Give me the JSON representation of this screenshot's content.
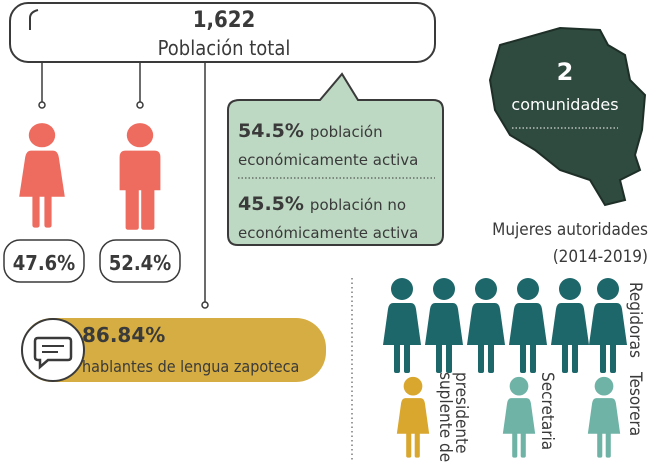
{
  "population": {
    "value": "1,622",
    "label": "Población total"
  },
  "gender": [
    {
      "value": "47.6%"
    },
    {
      "value": "52.4%"
    }
  ],
  "economy": [
    {
      "value": "54.5%",
      "lines": [
        "población",
        "económicamente activa"
      ]
    },
    {
      "value": "45.5%",
      "lines": [
        "población no",
        "económicamente activa"
      ]
    }
  ],
  "communities": {
    "value": "2",
    "label": "comunidades"
  },
  "authorities": {
    "title": [
      "Mujeres autoridades",
      "(2014-2019)"
    ],
    "roles": [
      {
        "lines": [
          "Regidoras"
        ]
      },
      {
        "lines": [
          "suplente de",
          "presidente"
        ]
      },
      {
        "lines": [
          "Secretaria"
        ]
      },
      {
        "lines": [
          "Tesorera"
        ]
      }
    ]
  },
  "language": {
    "value": "86.84%",
    "label": "hablantes de lengua zapoteca"
  }
}
